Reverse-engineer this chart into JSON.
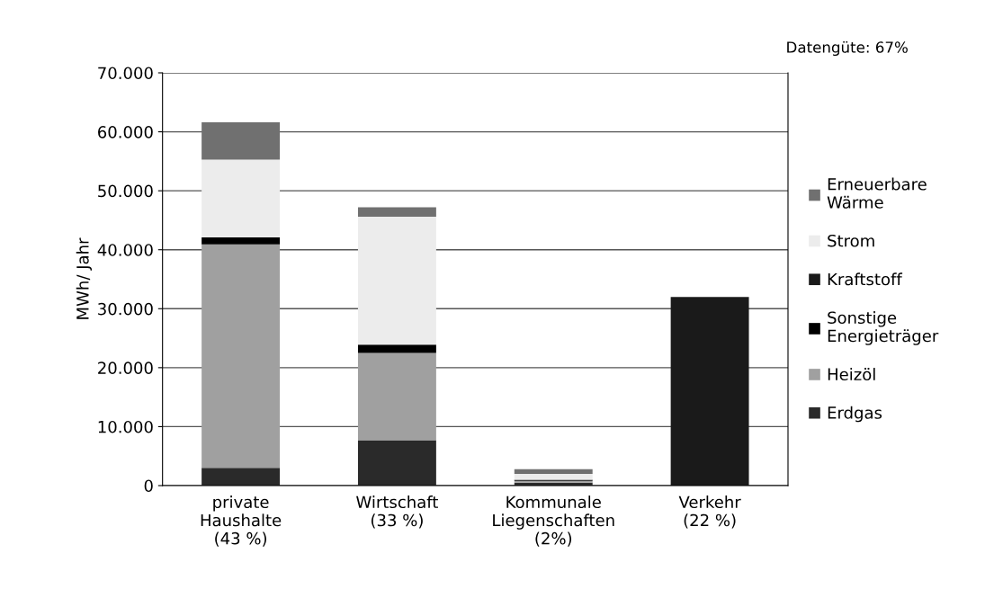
{
  "chart_data": {
    "type": "bar",
    "stacked": true,
    "ylabel": "MWh/ Jahr",
    "categories": [
      "private\nHaushalte\n(43 %)",
      "Wirtschaft\n(33 %)",
      "Kommunale\nLiegenschaften\n(2%)",
      "Verkehr\n(22 %)"
    ],
    "series": [
      {
        "name": "Erdgas",
        "color": "#2a2a2a",
        "values": [
          3000,
          7700,
          500,
          0
        ]
      },
      {
        "name": "Heizöl",
        "color": "#a0a0a0",
        "values": [
          37900,
          14800,
          300,
          0
        ]
      },
      {
        "name": "Sonstige\nEnergieträger",
        "color": "#000000",
        "values": [
          1200,
          1400,
          200,
          0
        ]
      },
      {
        "name": "Kraftstoff",
        "color": "#1a1a1a",
        "values": [
          0,
          0,
          0,
          32000
        ]
      },
      {
        "name": "Strom",
        "color": "#ececec",
        "values": [
          13200,
          21700,
          1000,
          0
        ]
      },
      {
        "name": "Erneuerbare\nWärme",
        "color": "#707070",
        "values": [
          6300,
          1600,
          800,
          0
        ]
      }
    ],
    "ylim": [
      0,
      70000
    ],
    "yticks": [
      {
        "value": 0,
        "label": "0"
      },
      {
        "value": 10000,
        "label": "10.000"
      },
      {
        "value": 20000,
        "label": "20.000"
      },
      {
        "value": 30000,
        "label": "30.000"
      },
      {
        "value": 40000,
        "label": "40.000"
      },
      {
        "value": 50000,
        "label": "50.000"
      },
      {
        "value": 60000,
        "label": "60.000"
      },
      {
        "value": 70000,
        "label": "70.000"
      }
    ],
    "grid": "y",
    "legend": "right",
    "annotations": [
      "Datengüte: 67%"
    ]
  }
}
